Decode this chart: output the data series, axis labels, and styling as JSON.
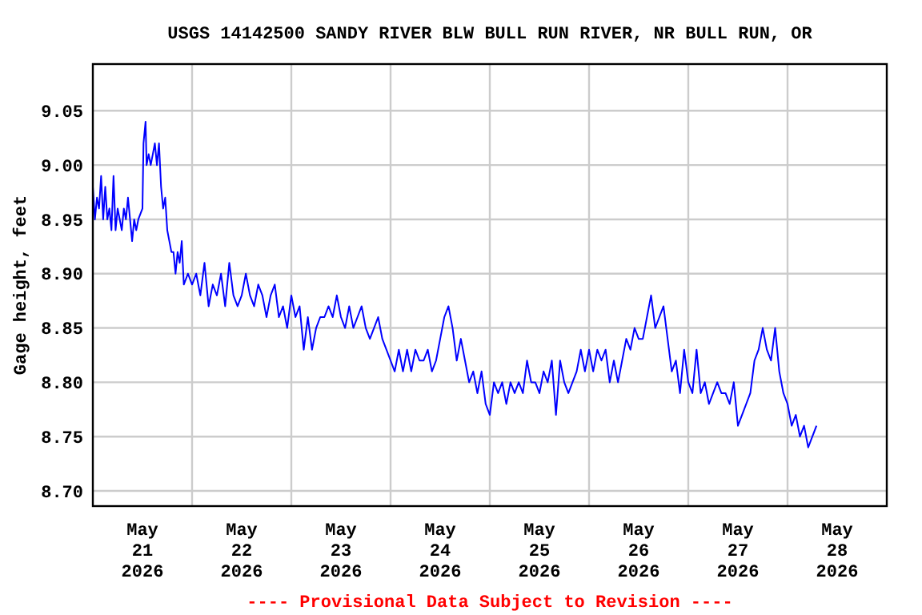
{
  "chart_data": {
    "type": "line",
    "title": "USGS 14142500 SANDY RIVER BLW BULL RUN RIVER, NR BULL RUN, OR",
    "ylabel": "Gage height, feet",
    "annotations": [
      "---- Provisional Data Subject to Revision ----"
    ],
    "xlim": [
      "2026-05-21T00:00",
      "2026-05-29T00:00"
    ],
    "xticks": [
      {
        "value": "2026-05-21T12:00",
        "label": "May\n21\n2026"
      },
      {
        "value": "2026-05-22T12:00",
        "label": "May\n22\n2026"
      },
      {
        "value": "2026-05-23T12:00",
        "label": "May\n23\n2026"
      },
      {
        "value": "2026-05-24T12:00",
        "label": "May\n24\n2026"
      },
      {
        "value": "2026-05-25T12:00",
        "label": "May\n25\n2026"
      },
      {
        "value": "2026-05-26T12:00",
        "label": "May\n26\n2026"
      },
      {
        "value": "2026-05-27T12:00",
        "label": "May\n27\n2026"
      },
      {
        "value": "2026-05-28T12:00",
        "label": "May\n28\n2026"
      },
      {
        "value": "2026-05-22T00:00",
        "label": null
      },
      {
        "value": "2026-05-23T00:00",
        "label": null
      },
      {
        "value": "2026-05-24T00:00",
        "label": null
      },
      {
        "value": "2026-05-25T00:00",
        "label": null
      },
      {
        "value": "2026-05-26T00:00",
        "label": null
      },
      {
        "value": "2026-05-27T00:00",
        "label": null
      },
      {
        "value": "2026-05-28T00:00",
        "label": null
      }
    ],
    "ylim": [
      8.686,
      9.093
    ],
    "yticks": [
      {
        "value": 8.7,
        "label": "8.70"
      },
      {
        "value": 8.75,
        "label": "8.75"
      },
      {
        "value": 8.8,
        "label": "8.80"
      },
      {
        "value": 8.85,
        "label": "8.85"
      },
      {
        "value": 8.9,
        "label": "8.90"
      },
      {
        "value": 8.95,
        "label": "8.95"
      },
      {
        "value": 9.0,
        "label": "9.00"
      },
      {
        "value": 9.05,
        "label": "9.05"
      }
    ],
    "grid": true,
    "marker": "none",
    "line_style": "solid",
    "x": [
      "2026-05-21T00:00",
      "2026-05-21T00:30",
      "2026-05-21T01:00",
      "2026-05-21T01:30",
      "2026-05-21T02:00",
      "2026-05-21T02:30",
      "2026-05-21T03:00",
      "2026-05-21T03:30",
      "2026-05-21T04:00",
      "2026-05-21T04:30",
      "2026-05-21T05:00",
      "2026-05-21T05:30",
      "2026-05-21T06:00",
      "2026-05-21T06:30",
      "2026-05-21T07:00",
      "2026-05-21T07:30",
      "2026-05-21T08:00",
      "2026-05-21T08:30",
      "2026-05-21T09:00",
      "2026-05-21T09:30",
      "2026-05-21T10:00",
      "2026-05-21T10:30",
      "2026-05-21T11:00",
      "2026-05-21T12:00",
      "2026-05-21T12:15",
      "2026-05-21T12:45",
      "2026-05-21T13:00",
      "2026-05-21T13:30",
      "2026-05-21T14:00",
      "2026-05-21T14:30",
      "2026-05-21T15:00",
      "2026-05-21T15:30",
      "2026-05-21T16:00",
      "2026-05-21T16:30",
      "2026-05-21T17:00",
      "2026-05-21T17:30",
      "2026-05-21T18:00",
      "2026-05-21T18:30",
      "2026-05-21T19:00",
      "2026-05-21T19:30",
      "2026-05-21T20:00",
      "2026-05-21T20:30",
      "2026-05-21T21:00",
      "2026-05-21T21:30",
      "2026-05-21T22:00",
      "2026-05-21T23:00",
      "2026-05-22T00:00",
      "2026-05-22T01:00",
      "2026-05-22T02:00",
      "2026-05-22T03:00",
      "2026-05-22T04:00",
      "2026-05-22T05:00",
      "2026-05-22T06:00",
      "2026-05-22T07:00",
      "2026-05-22T08:00",
      "2026-05-22T09:00",
      "2026-05-22T10:00",
      "2026-05-22T11:00",
      "2026-05-22T12:00",
      "2026-05-22T13:00",
      "2026-05-22T14:00",
      "2026-05-22T15:00",
      "2026-05-22T16:00",
      "2026-05-22T17:00",
      "2026-05-22T18:00",
      "2026-05-22T19:00",
      "2026-05-22T20:00",
      "2026-05-22T21:00",
      "2026-05-22T22:00",
      "2026-05-22T23:00",
      "2026-05-23T00:00",
      "2026-05-23T01:00",
      "2026-05-23T02:00",
      "2026-05-23T03:00",
      "2026-05-23T04:00",
      "2026-05-23T05:00",
      "2026-05-23T06:00",
      "2026-05-23T07:00",
      "2026-05-23T08:00",
      "2026-05-23T09:00",
      "2026-05-23T10:00",
      "2026-05-23T11:00",
      "2026-05-23T12:00",
      "2026-05-23T13:00",
      "2026-05-23T14:00",
      "2026-05-23T15:00",
      "2026-05-23T16:00",
      "2026-05-23T17:00",
      "2026-05-23T18:00",
      "2026-05-23T19:00",
      "2026-05-23T20:00",
      "2026-05-23T21:00",
      "2026-05-23T22:00",
      "2026-05-23T23:00",
      "2026-05-24T00:00",
      "2026-05-24T01:00",
      "2026-05-24T02:00",
      "2026-05-24T03:00",
      "2026-05-24T04:00",
      "2026-05-24T05:00",
      "2026-05-24T06:00",
      "2026-05-24T07:00",
      "2026-05-24T08:00",
      "2026-05-24T09:00",
      "2026-05-24T10:00",
      "2026-05-24T11:00",
      "2026-05-24T12:00",
      "2026-05-24T13:00",
      "2026-05-24T14:00",
      "2026-05-24T15:00",
      "2026-05-24T16:00",
      "2026-05-24T17:00",
      "2026-05-24T18:00",
      "2026-05-24T19:00",
      "2026-05-24T20:00",
      "2026-05-24T21:00",
      "2026-05-24T22:00",
      "2026-05-24T23:00",
      "2026-05-25T00:00",
      "2026-05-25T01:00",
      "2026-05-25T02:00",
      "2026-05-25T03:00",
      "2026-05-25T04:00",
      "2026-05-25T05:00",
      "2026-05-25T06:00",
      "2026-05-25T07:00",
      "2026-05-25T08:00",
      "2026-05-25T09:00",
      "2026-05-25T10:00",
      "2026-05-25T11:00",
      "2026-05-25T12:00",
      "2026-05-25T13:00",
      "2026-05-25T14:00",
      "2026-05-25T15:00",
      "2026-05-25T16:00",
      "2026-05-25T17:00",
      "2026-05-25T18:00",
      "2026-05-25T19:00",
      "2026-05-25T20:00",
      "2026-05-25T21:00",
      "2026-05-25T22:00",
      "2026-05-25T23:00",
      "2026-05-26T00:00",
      "2026-05-26T01:00",
      "2026-05-26T02:00",
      "2026-05-26T03:00",
      "2026-05-26T04:00",
      "2026-05-26T05:00",
      "2026-05-26T06:00",
      "2026-05-26T07:00",
      "2026-05-26T08:00",
      "2026-05-26T09:00",
      "2026-05-26T10:00",
      "2026-05-26T11:00",
      "2026-05-26T12:00",
      "2026-05-26T13:00",
      "2026-05-26T14:00",
      "2026-05-26T15:00",
      "2026-05-26T16:00",
      "2026-05-26T17:00",
      "2026-05-26T18:00",
      "2026-05-26T19:00",
      "2026-05-26T20:00",
      "2026-05-26T21:00",
      "2026-05-26T22:00",
      "2026-05-26T23:00",
      "2026-05-27T00:00",
      "2026-05-27T01:00",
      "2026-05-27T02:00",
      "2026-05-27T03:00",
      "2026-05-27T04:00",
      "2026-05-27T05:00",
      "2026-05-27T06:00",
      "2026-05-27T07:00",
      "2026-05-27T08:00",
      "2026-05-27T09:00",
      "2026-05-27T10:00",
      "2026-05-27T11:00",
      "2026-05-27T12:00",
      "2026-05-27T13:00",
      "2026-05-27T14:00",
      "2026-05-27T15:00",
      "2026-05-27T16:00",
      "2026-05-27T17:00",
      "2026-05-27T18:00",
      "2026-05-27T19:00",
      "2026-05-27T20:00",
      "2026-05-27T21:00",
      "2026-05-27T22:00",
      "2026-05-27T23:00",
      "2026-05-28T00:00",
      "2026-05-28T01:00",
      "2026-05-28T02:00",
      "2026-05-28T03:00",
      "2026-05-28T04:00",
      "2026-05-28T05:00",
      "2026-05-28T06:00",
      "2026-05-28T07:00"
    ],
    "series": [
      {
        "color": "#0000ff",
        "values": [
          8.98,
          8.95,
          8.97,
          8.96,
          8.99,
          8.95,
          8.98,
          8.95,
          8.96,
          8.94,
          8.99,
          8.94,
          8.96,
          8.95,
          8.94,
          8.96,
          8.95,
          8.97,
          8.95,
          8.93,
          8.95,
          8.94,
          8.95,
          8.96,
          9.02,
          9.04,
          9.0,
          9.01,
          9.0,
          9.01,
          9.02,
          9.0,
          9.02,
          8.98,
          8.96,
          8.97,
          8.94,
          8.93,
          8.92,
          8.92,
          8.9,
          8.92,
          8.91,
          8.93,
          8.89,
          8.9,
          8.89,
          8.9,
          8.88,
          8.91,
          8.87,
          8.89,
          8.88,
          8.9,
          8.87,
          8.91,
          8.88,
          8.87,
          8.88,
          8.9,
          8.88,
          8.87,
          8.89,
          8.88,
          8.86,
          8.88,
          8.89,
          8.86,
          8.87,
          8.85,
          8.88,
          8.86,
          8.87,
          8.83,
          8.86,
          8.83,
          8.85,
          8.86,
          8.86,
          8.87,
          8.86,
          8.88,
          8.86,
          8.85,
          8.87,
          8.85,
          8.86,
          8.87,
          8.85,
          8.84,
          8.85,
          8.86,
          8.84,
          8.83,
          8.82,
          8.81,
          8.83,
          8.81,
          8.83,
          8.81,
          8.83,
          8.82,
          8.82,
          8.83,
          8.81,
          8.82,
          8.84,
          8.86,
          8.87,
          8.85,
          8.82,
          8.84,
          8.82,
          8.8,
          8.81,
          8.79,
          8.81,
          8.78,
          8.77,
          8.8,
          8.79,
          8.8,
          8.78,
          8.8,
          8.79,
          8.8,
          8.79,
          8.82,
          8.8,
          8.8,
          8.79,
          8.81,
          8.8,
          8.82,
          8.77,
          8.82,
          8.8,
          8.79,
          8.8,
          8.81,
          8.83,
          8.81,
          8.83,
          8.81,
          8.83,
          8.82,
          8.83,
          8.8,
          8.82,
          8.8,
          8.82,
          8.84,
          8.83,
          8.85,
          8.84,
          8.84,
          8.86,
          8.88,
          8.85,
          8.86,
          8.87,
          8.84,
          8.81,
          8.82,
          8.79,
          8.83,
          8.8,
          8.79,
          8.83,
          8.79,
          8.8,
          8.78,
          8.79,
          8.8,
          8.79,
          8.79,
          8.78,
          8.8,
          8.76,
          8.77,
          8.78,
          8.79,
          8.82,
          8.83,
          8.85,
          8.83,
          8.82,
          8.85,
          8.81,
          8.79,
          8.78,
          8.76,
          8.77,
          8.75,
          8.76,
          8.74,
          8.75,
          8.76
        ]
      }
    ]
  }
}
